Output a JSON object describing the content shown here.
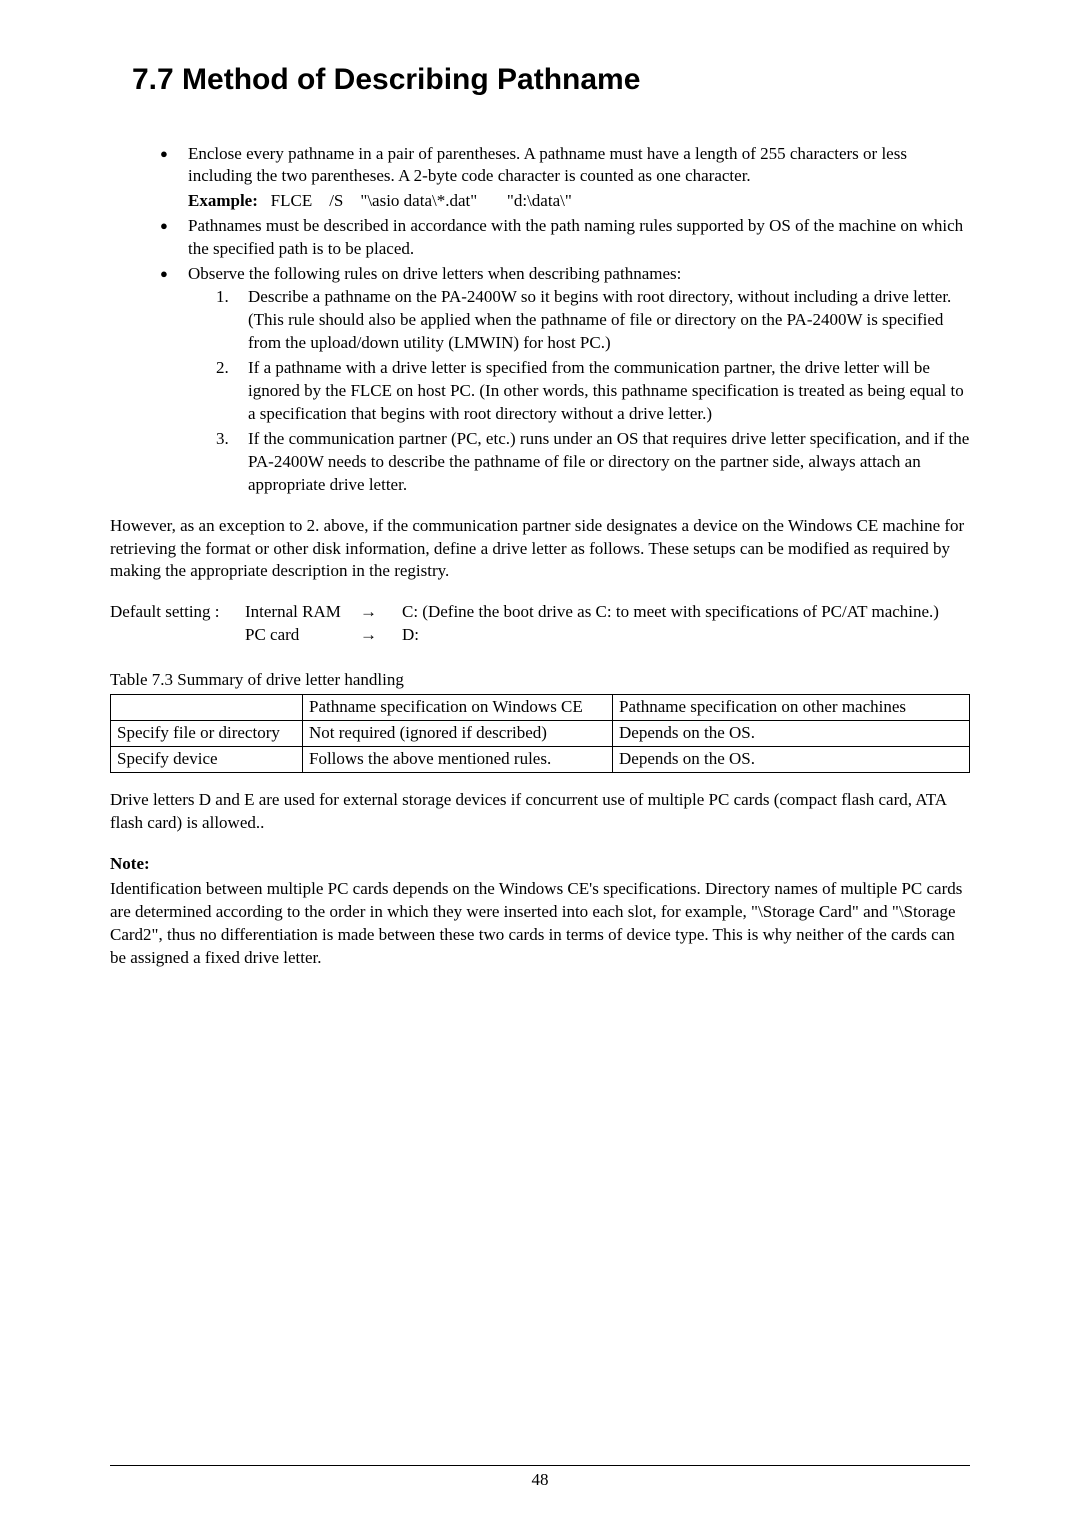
{
  "heading": "7.7   Method of Describing Pathname",
  "bullets": [
    {
      "text": "Enclose every pathname in a pair of parentheses. A pathname must have a length of 255 characters or less including the two parentheses. A 2-byte code character is counted as one character.",
      "example_label": "Example:",
      "example_text": "   FLCE    /S    \"\\asio data\\*.dat\"       \"d:\\data\\\""
    },
    {
      "text": "Pathnames must be described in accordance with the path naming rules supported by OS of the machine on which the specified path is to be placed."
    },
    {
      "text": "Observe the following rules on drive letters when describing pathnames:",
      "numbered": [
        {
          "n": "1.",
          "t": "Describe a pathname on the PA-2400W so it begins with root directory, without including a drive letter. (This rule should also be applied when the pathname of file or directory on the PA-2400W is specified from the upload/down utility (LMWIN) for host PC.)"
        },
        {
          "n": "2.",
          "t": "If a pathname with a drive letter is specified from the communication partner, the drive letter will be ignored by the FLCE on host PC. (In other words, this pathname specification is treated as being equal to a specification that begins with root directory without a drive letter.)"
        },
        {
          "n": "3.",
          "t": "If the communication partner (PC, etc.) runs under an OS that requires drive letter specification, and if the PA-2400W needs to describe the pathname of file or directory on the partner side, always attach an appropriate drive letter."
        }
      ]
    }
  ],
  "exception_para": "However, as an exception to 2. above, if the communication partner side designates a device on the Windows CE machine for retrieving the format or other disk information, define a drive letter as follows. These setups can be modified as required by making the appropriate description in the registry.",
  "default": {
    "label": "Default setting :",
    "rows": [
      {
        "src": "Internal RAM",
        "arrow": "→",
        "dst": "C: (Define the boot drive as C: to meet with specifications of PC/AT machine.)"
      },
      {
        "src": "PC card",
        "arrow": "→",
        "dst": "D:"
      }
    ]
  },
  "table": {
    "caption": "Table 7.3   Summary of drive letter handling",
    "headers": [
      "",
      "Pathname specification on Windows CE",
      "Pathname specification on other machines"
    ],
    "rows": [
      [
        "Specify file or directory",
        "Not required (ignored if described)",
        "Depends on the OS."
      ],
      [
        "Specify device",
        "Follows the above mentioned rules.",
        "Depends on the OS."
      ]
    ]
  },
  "drive_para": "Drive letters D and E are used for external storage devices if concurrent use of multiple PC cards (compact flash card, ATA flash card) is allowed..",
  "note_label": "Note:",
  "note_text": "Identification between multiple PC cards depends on the Windows CE's specifications. Directory names of multiple PC cards are determined according to the order in which they were inserted into each slot, for example, \"\\Storage Card\" and \"\\Storage Card2\", thus no differentiation is made between these two cards in terms of device type. This is why neither of the cards can be assigned a fixed drive letter.",
  "page_number": "48"
}
